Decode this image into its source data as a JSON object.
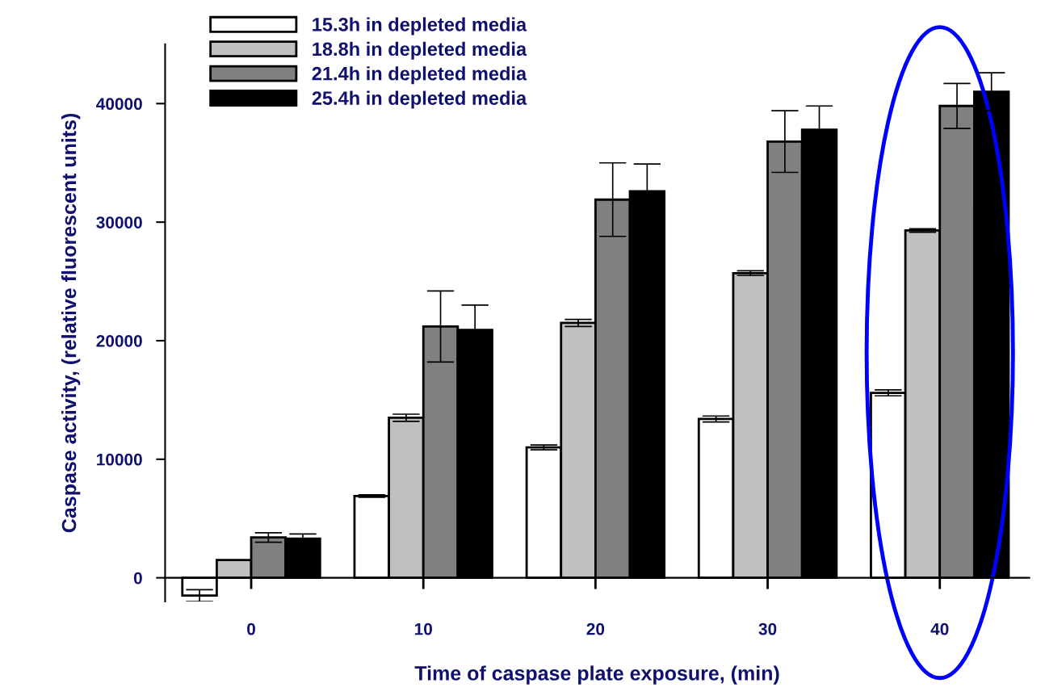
{
  "chart_data": {
    "type": "bar",
    "xlabel": "Time of caspase plate exposure, (min)",
    "ylabel": "Caspase activity, (relative fluorescent units)",
    "categories": [
      "0",
      "10",
      "20",
      "30",
      "40"
    ],
    "series": [
      {
        "name": "15.3h in depleted media",
        "color": "#ffffff",
        "values": [
          -1500,
          6900,
          11000,
          13400,
          15600
        ],
        "errors": [
          500,
          100,
          200,
          250,
          250
        ]
      },
      {
        "name": "18.8h in depleted media",
        "color": "#c0c0c0",
        "values": [
          1500,
          13500,
          21500,
          25700,
          29300
        ],
        "errors": [
          null,
          300,
          300,
          200,
          150
        ]
      },
      {
        "name": "21.4h in depleted media",
        "color": "#808080",
        "values": [
          3400,
          21200,
          31900,
          36800,
          39800
        ],
        "errors": [
          400,
          3000,
          3100,
          2600,
          1900
        ]
      },
      {
        "name": "25.4h in depleted media",
        "color": "#000000",
        "values": [
          3300,
          20900,
          32600,
          37800,
          41000
        ],
        "errors": [
          400,
          2100,
          2300,
          2000,
          1600
        ]
      }
    ],
    "ylim": [
      -2000,
      45000
    ],
    "yticks": [
      0,
      10000,
      20000,
      30000,
      40000
    ],
    "legend": "top left"
  }
}
